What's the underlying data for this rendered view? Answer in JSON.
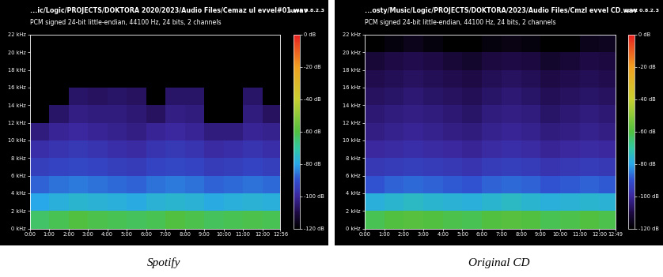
{
  "chart_data": [
    {
      "type": "heatmap",
      "title": "...ic/Logic/PROJECTS/DOKTORA 2020/2023/Audio Files/Cemaz ul evvel#01.wav",
      "subtitle": "PCM signed 24-bit little-endian, 44100 Hz, 24 bits, 2 channels",
      "annotation": "spek 0.8.2.3",
      "caption": "Spotify",
      "xlim": [
        0,
        776
      ],
      "ylim": [
        0,
        22
      ],
      "xticks": [
        {
          "value": 0,
          "label": "0:00"
        },
        {
          "value": 60,
          "label": "1:00"
        },
        {
          "value": 120,
          "label": "2:00"
        },
        {
          "value": 180,
          "label": "3:00"
        },
        {
          "value": 240,
          "label": "4:00"
        },
        {
          "value": 300,
          "label": "5:00"
        },
        {
          "value": 360,
          "label": "6:00"
        },
        {
          "value": 420,
          "label": "7:00"
        },
        {
          "value": 480,
          "label": "8:00"
        },
        {
          "value": 540,
          "label": "9:00"
        },
        {
          "value": 600,
          "label": "10:00"
        },
        {
          "value": 660,
          "label": "11:00"
        },
        {
          "value": 720,
          "label": "12:00"
        },
        {
          "value": 776,
          "label": "12:56"
        }
      ],
      "yticks": [
        {
          "value": 0,
          "label": "0 kHz"
        },
        {
          "value": 2,
          "label": "2 kHz"
        },
        {
          "value": 4,
          "label": "4 kHz"
        },
        {
          "value": 6,
          "label": "6 kHz"
        },
        {
          "value": 8,
          "label": "8 kHz"
        },
        {
          "value": 10,
          "label": "10 kHz"
        },
        {
          "value": 12,
          "label": "12 kHz"
        },
        {
          "value": 14,
          "label": "14 kHz"
        },
        {
          "value": 16,
          "label": "16 kHz"
        },
        {
          "value": 18,
          "label": "18 kHz"
        },
        {
          "value": 20,
          "label": "20 kHz"
        },
        {
          "value": 22,
          "label": "22 kHz"
        }
      ],
      "x_edges": [
        0,
        60,
        120,
        180,
        240,
        300,
        360,
        420,
        480,
        540,
        600,
        660,
        720,
        776
      ],
      "y_edges": [
        0,
        2,
        4,
        6,
        8,
        10,
        12,
        14,
        16,
        18,
        20,
        22
      ],
      "cells": [
        [
          -64,
          -62,
          -60,
          -61,
          -62,
          -63,
          -62,
          -60,
          -61,
          -63,
          -62,
          -61,
          -62
        ],
        [
          -80,
          -78,
          -76,
          -77,
          -78,
          -79,
          -77,
          -76,
          -77,
          -79,
          -78,
          -77,
          -78
        ],
        [
          -88,
          -86,
          -85,
          -86,
          -87,
          -88,
          -86,
          -85,
          -86,
          -88,
          -87,
          -86,
          -87
        ],
        [
          -94,
          -93,
          -92,
          -93,
          -94,
          -95,
          -93,
          -92,
          -93,
          -95,
          -94,
          -93,
          -94
        ],
        [
          -98,
          -97,
          -96,
          -97,
          -98,
          -99,
          -97,
          -96,
          -97,
          -99,
          -98,
          -97,
          -98
        ],
        [
          -104,
          -101,
          -100,
          -101,
          -102,
          -103,
          -101,
          -100,
          -101,
          -104,
          -104,
          -101,
          -102
        ],
        [
          -120,
          -106,
          -103,
          -104,
          -104,
          -105,
          -107,
          -103,
          -104,
          -120,
          -120,
          -104,
          -107
        ],
        [
          -120,
          -120,
          -106,
          -107,
          -106,
          -107,
          -120,
          -106,
          -106,
          -120,
          -120,
          -106,
          -120
        ],
        [
          -120,
          -120,
          -120,
          -120,
          -120,
          -120,
          -120,
          -120,
          -120,
          -120,
          -120,
          -120,
          -120
        ],
        [
          -120,
          -120,
          -120,
          -120,
          -120,
          -120,
          -120,
          -120,
          -120,
          -120,
          -120,
          -120,
          -120
        ],
        [
          -120,
          -120,
          -120,
          -120,
          -120,
          -120,
          -120,
          -120,
          -120,
          -120,
          -120,
          -120,
          -120
        ]
      ],
      "colorbar_range": [
        -120,
        0
      ],
      "colorbar_ticks": [
        {
          "value": 0,
          "label": "0 dB"
        },
        {
          "value": -20,
          "label": "-20 dB"
        },
        {
          "value": -40,
          "label": "-40 dB"
        },
        {
          "value": -60,
          "label": "-60 dB"
        },
        {
          "value": -80,
          "label": "-80 dB"
        },
        {
          "value": -100,
          "label": "-100 dB"
        },
        {
          "value": -120,
          "label": "-120 dB"
        }
      ]
    },
    {
      "type": "heatmap",
      "title": "...osty/Music/Logic/PROJECTS/DOKTORA/2023/Audio Files/Cmzl evvel CD.wav",
      "subtitle": "PCM signed 24-bit little-endian, 44100 Hz, 24 bits, 2 channels",
      "annotation": "spek 0.8.2.3",
      "caption": "Original CD",
      "xlim": [
        0,
        769
      ],
      "ylim": [
        0,
        22
      ],
      "xticks": [
        {
          "value": 0,
          "label": "0:00"
        },
        {
          "value": 60,
          "label": "1:00"
        },
        {
          "value": 120,
          "label": "2:00"
        },
        {
          "value": 180,
          "label": "3:00"
        },
        {
          "value": 240,
          "label": "4:00"
        },
        {
          "value": 300,
          "label": "5:00"
        },
        {
          "value": 360,
          "label": "6:00"
        },
        {
          "value": 420,
          "label": "7:00"
        },
        {
          "value": 480,
          "label": "8:00"
        },
        {
          "value": 540,
          "label": "9:00"
        },
        {
          "value": 600,
          "label": "10:00"
        },
        {
          "value": 660,
          "label": "11:00"
        },
        {
          "value": 720,
          "label": "12:00"
        },
        {
          "value": 769,
          "label": "12:49"
        }
      ],
      "yticks": [
        {
          "value": 0,
          "label": "0 kHz"
        },
        {
          "value": 2,
          "label": "2 kHz"
        },
        {
          "value": 4,
          "label": "4 kHz"
        },
        {
          "value": 6,
          "label": "6 kHz"
        },
        {
          "value": 8,
          "label": "8 kHz"
        },
        {
          "value": 10,
          "label": "10 kHz"
        },
        {
          "value": 12,
          "label": "12 kHz"
        },
        {
          "value": 14,
          "label": "14 kHz"
        },
        {
          "value": 16,
          "label": "16 kHz"
        },
        {
          "value": 18,
          "label": "18 kHz"
        },
        {
          "value": 20,
          "label": "20 kHz"
        },
        {
          "value": 22,
          "label": "22 kHz"
        }
      ],
      "x_edges": [
        0,
        60,
        120,
        180,
        240,
        300,
        360,
        420,
        480,
        540,
        600,
        660,
        720,
        769
      ],
      "y_edges": [
        0,
        2,
        4,
        6,
        8,
        10,
        12,
        14,
        16,
        18,
        20,
        22
      ],
      "cells": [
        [
          -62,
          -60,
          -59,
          -60,
          -61,
          -62,
          -60,
          -59,
          -60,
          -62,
          -61,
          -60,
          -61
        ],
        [
          -78,
          -76,
          -75,
          -76,
          -77,
          -78,
          -76,
          -75,
          -76,
          -78,
          -77,
          -76,
          -77
        ],
        [
          -90,
          -88,
          -87,
          -88,
          -89,
          -90,
          -88,
          -87,
          -88,
          -90,
          -89,
          -88,
          -89
        ],
        [
          -96,
          -95,
          -94,
          -95,
          -96,
          -97,
          -95,
          -94,
          -95,
          -97,
          -96,
          -95,
          -96
        ],
        [
          -100,
          -99,
          -98,
          -99,
          -100,
          -101,
          -99,
          -98,
          -99,
          -101,
          -100,
          -99,
          -100
        ],
        [
          -103,
          -102,
          -101,
          -102,
          -103,
          -104,
          -102,
          -101,
          -102,
          -104,
          -103,
          -102,
          -103
        ],
        [
          -105,
          -104,
          -103,
          -104,
          -105,
          -106,
          -104,
          -103,
          -104,
          -106,
          -105,
          -104,
          -105
        ],
        [
          -107,
          -106,
          -105,
          -106,
          -107,
          -108,
          -106,
          -105,
          -106,
          -108,
          -107,
          -106,
          -107
        ],
        [
          -109,
          -108,
          -107,
          -108,
          -109,
          -110,
          -108,
          -107,
          -108,
          -110,
          -109,
          -108,
          -109
        ],
        [
          -112,
          -110,
          -109,
          -110,
          -112,
          -113,
          -111,
          -110,
          -111,
          -113,
          -112,
          -110,
          -111
        ],
        [
          -120,
          -118,
          -116,
          -118,
          -120,
          -120,
          -118,
          -117,
          -118,
          -120,
          -120,
          -116,
          -115
        ]
      ],
      "colorbar_range": [
        -120,
        0
      ],
      "colorbar_ticks": [
        {
          "value": 0,
          "label": "0 dB"
        },
        {
          "value": -20,
          "label": "-20 dB"
        },
        {
          "value": -40,
          "label": "-40 dB"
        },
        {
          "value": -60,
          "label": "-60 dB"
        },
        {
          "value": -80,
          "label": "-80 dB"
        },
        {
          "value": -100,
          "label": "-100 dB"
        },
        {
          "value": -120,
          "label": "-120 dB"
        }
      ]
    }
  ]
}
